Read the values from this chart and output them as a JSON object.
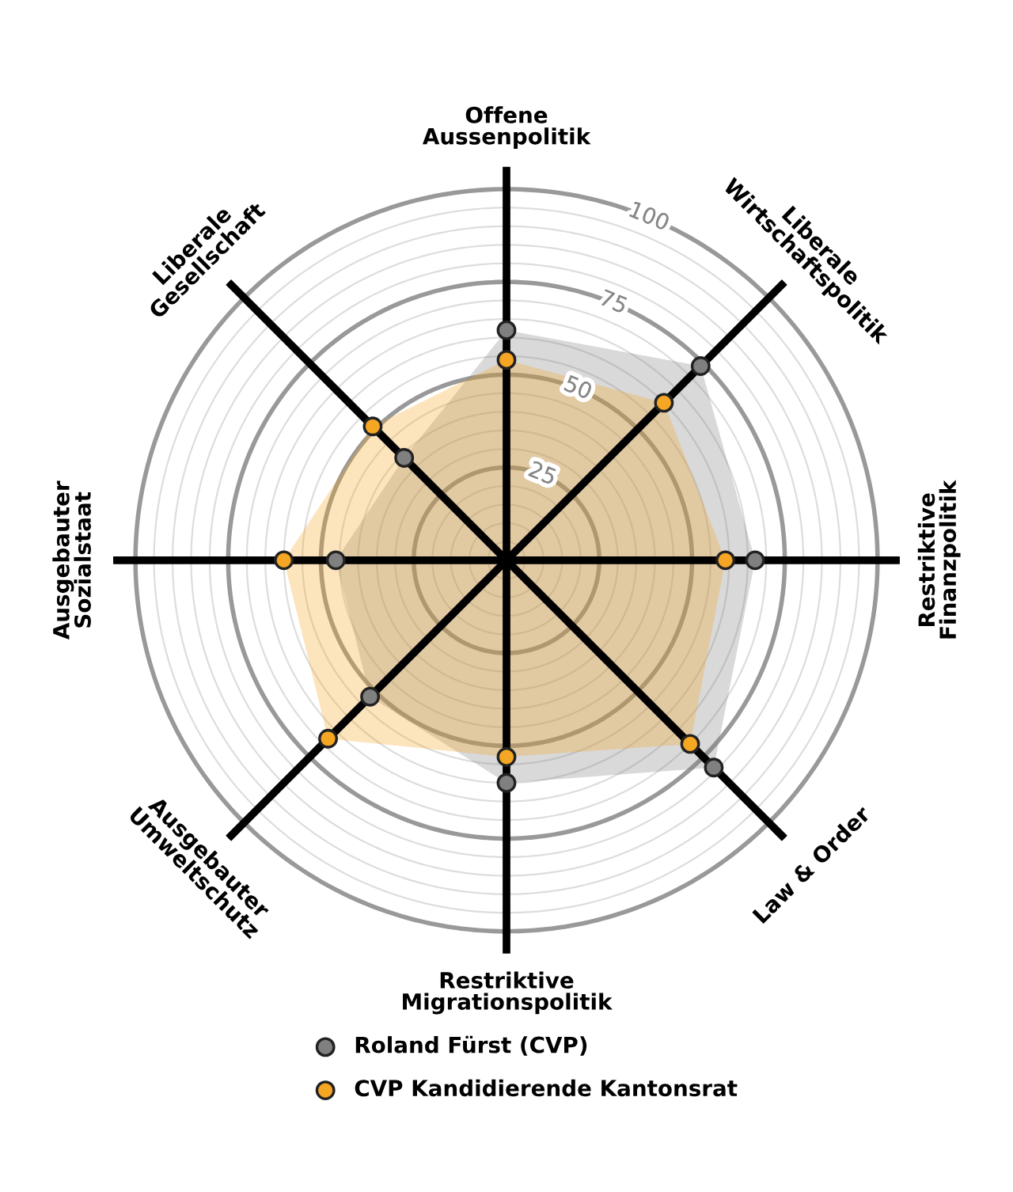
{
  "chart_data": {
    "type": "radar",
    "categories": [
      "Offene\nAussenpolitik",
      "Liberale\nWirtschaftspolitik",
      "Restriktive\nFinanzpolitik",
      "Law & Order",
      "Restriktive\nMigrationspolitik",
      "Ausgebauter\nUmweltschutz",
      "Ausgebauter\nSozialstaat",
      "Liberale\nGesellschaft"
    ],
    "series": [
      {
        "name": "Roland Fürst (CVP)",
        "color": "#808080",
        "values": [
          62,
          74,
          67,
          79,
          60,
          52,
          46,
          39
        ]
      },
      {
        "name": "CVP Kandidierende Kantonsrat",
        "color": "#f5a623",
        "values": [
          54,
          60,
          59,
          70,
          53,
          68,
          60,
          51
        ]
      }
    ],
    "ylim": [
      0,
      106
    ],
    "yticks": [
      25,
      50,
      75,
      100
    ],
    "marker": "circle",
    "legend": "bottom"
  }
}
